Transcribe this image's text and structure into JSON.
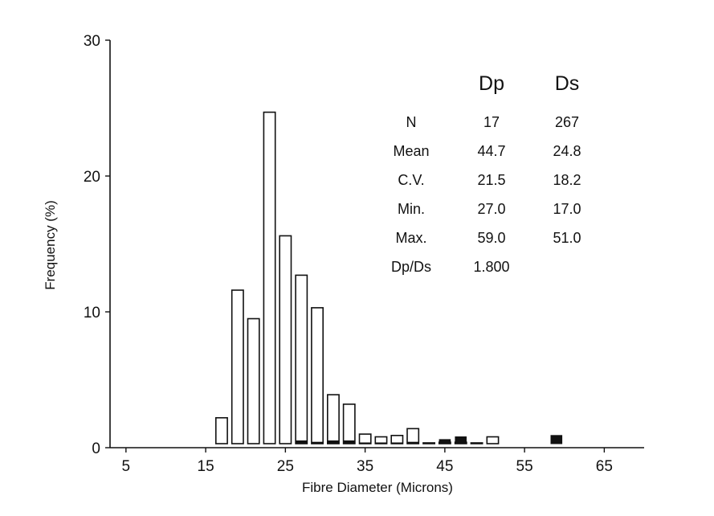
{
  "chart_data": {
    "type": "bar",
    "xlabel": "Fibre Diameter (Microns)",
    "ylabel": "Frequency (%)",
    "xlim": [
      3,
      70
    ],
    "ylim": [
      0,
      30
    ],
    "xticks": [
      5,
      15,
      25,
      35,
      45,
      55,
      65
    ],
    "yticks": [
      0,
      10,
      20,
      30
    ],
    "bin_width": 2,
    "series": [
      {
        "name": "Ds",
        "style": "open",
        "x": [
          17,
          19,
          21,
          23,
          25,
          27,
          29,
          31,
          33,
          35,
          37,
          39,
          41,
          43,
          45,
          47,
          49,
          51
        ],
        "values": [
          2.2,
          11.6,
          9.5,
          24.7,
          15.6,
          12.7,
          10.3,
          3.9,
          3.2,
          1.0,
          0.8,
          0.9,
          1.4,
          0.3,
          0.4,
          0.4,
          0.3,
          0.8
        ]
      },
      {
        "name": "Dp",
        "style": "solid",
        "x": [
          27,
          29,
          31,
          33,
          35,
          37,
          39,
          41,
          43,
          45,
          47,
          49,
          59
        ],
        "values": [
          0.5,
          0.4,
          0.5,
          0.5,
          0.1,
          0.2,
          0.3,
          0.4,
          0.3,
          0.6,
          0.8,
          0.3,
          0.9
        ]
      }
    ],
    "stats_table": {
      "headers": [
        "",
        "Dp",
        "Ds"
      ],
      "rows": [
        [
          "N",
          "17",
          "267"
        ],
        [
          "Mean",
          "44.7",
          "24.8"
        ],
        [
          "C.V.",
          "21.5",
          "18.2"
        ],
        [
          "Min.",
          "27.0",
          "17.0"
        ],
        [
          "Max.",
          "59.0",
          "51.0"
        ],
        [
          "Dp/Ds",
          "1.800",
          ""
        ]
      ]
    }
  }
}
